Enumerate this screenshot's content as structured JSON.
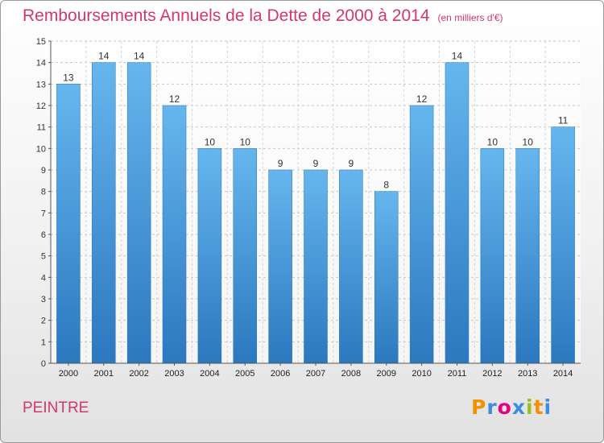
{
  "chart_data": {
    "type": "bar",
    "title": "Remboursements Annuels de la Dette de 2000 à 2014",
    "unit_note": "(en milliers d'€)",
    "categories": [
      "2000",
      "2001",
      "2002",
      "2003",
      "2004",
      "2005",
      "2006",
      "2007",
      "2008",
      "2009",
      "2010",
      "2011",
      "2012",
      "2013",
      "2014"
    ],
    "values": [
      13,
      14,
      14,
      12,
      10,
      10,
      9,
      9,
      9,
      8,
      12,
      14,
      10,
      10,
      11
    ],
    "ylim": [
      0,
      15
    ],
    "yticks": [
      0,
      1,
      2,
      3,
      4,
      5,
      6,
      7,
      8,
      9,
      10,
      11,
      12,
      13,
      14,
      15
    ],
    "grid": true,
    "bar_color": "#3f8fd6"
  },
  "commune": "PEINTRE",
  "logo": {
    "letters": [
      "P",
      "r",
      "o",
      "x",
      "i",
      "t",
      "i"
    ],
    "colors": [
      "#f39200",
      "#3c8dde",
      "#e6007e",
      "#3c8dde",
      "#95c11f",
      "#f39200",
      "#3c8dde"
    ]
  }
}
